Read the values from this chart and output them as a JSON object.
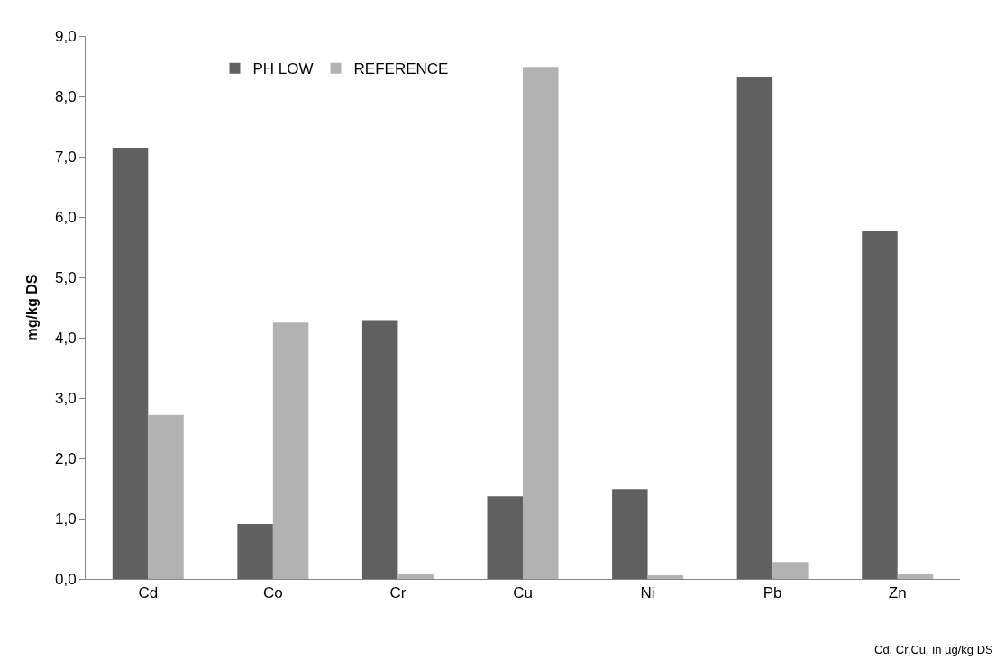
{
  "chart_data": {
    "type": "bar",
    "ylabel": "mg/kg DS",
    "categories": [
      "Cd",
      "Co",
      "Cr",
      "Cu",
      "Ni",
      "Pb",
      "Zn"
    ],
    "series": [
      {
        "name": "PH LOW",
        "color": "#606060",
        "values": [
          7.15,
          0.91,
          4.29,
          1.37,
          1.49,
          8.33,
          5.77
        ]
      },
      {
        "name": "REFERENCE",
        "color": "#b2b2b2",
        "values": [
          2.72,
          4.25,
          0.09,
          8.49,
          0.06,
          0.28,
          0.09
        ]
      }
    ],
    "ylim": [
      0,
      9
    ],
    "yticks": [
      {
        "value": 0,
        "label": "0,0"
      },
      {
        "value": 1,
        "label": "1,0"
      },
      {
        "value": 2,
        "label": "2,0"
      },
      {
        "value": 3,
        "label": "3,0"
      },
      {
        "value": 4,
        "label": "4,0"
      },
      {
        "value": 5,
        "label": "5,0"
      },
      {
        "value": 6,
        "label": "6,0"
      },
      {
        "value": 7,
        "label": "7,0"
      },
      {
        "value": 8,
        "label": "8,0"
      },
      {
        "value": 9,
        "label": "9,0"
      }
    ],
    "grid": false,
    "legend": "top",
    "annotations": [
      "Cd, Cr,Cu  in µg/kg DS"
    ]
  }
}
